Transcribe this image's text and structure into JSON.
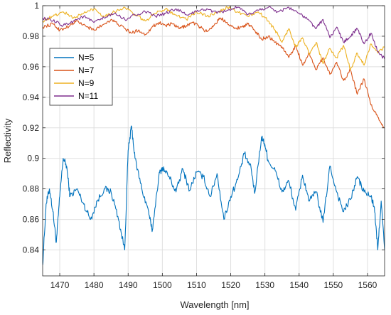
{
  "chart_data": {
    "type": "line",
    "xlabel": "Wavelength [nm]",
    "ylabel": "Reflectivity",
    "xlim": [
      1465,
      1565
    ],
    "ylim": [
      0.823,
      1.0
    ],
    "xticks": [
      1470,
      1480,
      1490,
      1500,
      1510,
      1520,
      1530,
      1540,
      1550,
      1560
    ],
    "yticks": [
      0.84,
      0.86,
      0.88,
      0.9,
      0.92,
      0.94,
      0.96,
      0.98,
      1
    ],
    "xtick_labels": [
      "1470",
      "1480",
      "1490",
      "1500",
      "1510",
      "1520",
      "1530",
      "1540",
      "1550",
      "1560"
    ],
    "ytick_labels": [
      "0.84",
      "0.86",
      "0.88",
      "0.9",
      "0.92",
      "0.94",
      "0.96",
      "0.98",
      "1"
    ],
    "grid": true,
    "legend_position": "top-left",
    "series": [
      {
        "name": "N=5",
        "color": "#0072BD",
        "x": [
          1465,
          1466,
          1467,
          1468,
          1469,
          1470,
          1471,
          1472,
          1473,
          1475,
          1477,
          1479,
          1481,
          1483,
          1485,
          1487,
          1489,
          1490,
          1491,
          1492,
          1494,
          1496,
          1497,
          1499,
          1500,
          1502,
          1504,
          1506,
          1508,
          1510,
          1512,
          1514,
          1516,
          1518,
          1520,
          1522,
          1524,
          1526,
          1527,
          1529,
          1530,
          1531,
          1533,
          1535,
          1537,
          1539,
          1541,
          1543,
          1545,
          1547,
          1549,
          1551,
          1553,
          1555,
          1557,
          1559,
          1561,
          1562,
          1563,
          1564,
          1565
        ],
        "y": [
          0.83,
          0.87,
          0.88,
          0.865,
          0.845,
          0.875,
          0.9,
          0.895,
          0.875,
          0.88,
          0.87,
          0.86,
          0.872,
          0.88,
          0.878,
          0.862,
          0.84,
          0.905,
          0.921,
          0.9,
          0.88,
          0.865,
          0.852,
          0.889,
          0.894,
          0.888,
          0.878,
          0.893,
          0.879,
          0.891,
          0.888,
          0.875,
          0.89,
          0.86,
          0.875,
          0.886,
          0.903,
          0.893,
          0.877,
          0.914,
          0.909,
          0.898,
          0.892,
          0.878,
          0.885,
          0.866,
          0.889,
          0.872,
          0.878,
          0.858,
          0.895,
          0.878,
          0.865,
          0.873,
          0.888,
          0.878,
          0.875,
          0.868,
          0.84,
          0.872,
          0.84
        ]
      },
      {
        "name": "N=7",
        "color": "#D95319",
        "x": [
          1465,
          1468,
          1470,
          1473,
          1475,
          1478,
          1480,
          1483,
          1485,
          1487,
          1489,
          1491,
          1493,
          1495,
          1497,
          1499,
          1501,
          1503,
          1505,
          1507,
          1509,
          1511,
          1513,
          1515,
          1517,
          1519,
          1521,
          1523,
          1525,
          1527,
          1529,
          1531,
          1533,
          1535,
          1537,
          1539,
          1541,
          1543,
          1545,
          1547,
          1549,
          1551,
          1553,
          1555,
          1557,
          1559,
          1561,
          1563,
          1565
        ],
        "y": [
          0.986,
          0.988,
          0.984,
          0.987,
          0.99,
          0.986,
          0.984,
          0.988,
          0.991,
          0.988,
          0.985,
          0.982,
          0.984,
          0.981,
          0.986,
          0.989,
          0.987,
          0.988,
          0.985,
          0.987,
          0.989,
          0.986,
          0.983,
          0.987,
          0.992,
          0.989,
          0.985,
          0.986,
          0.988,
          0.984,
          0.978,
          0.98,
          0.976,
          0.973,
          0.966,
          0.974,
          0.961,
          0.969,
          0.958,
          0.966,
          0.955,
          0.963,
          0.951,
          0.958,
          0.942,
          0.952,
          0.935,
          0.927,
          0.92
        ]
      },
      {
        "name": "N=9",
        "color": "#EDB120",
        "x": [
          1465,
          1468,
          1471,
          1474,
          1477,
          1480,
          1483,
          1486,
          1489,
          1492,
          1495,
          1498,
          1501,
          1504,
          1507,
          1510,
          1513,
          1516,
          1519,
          1522,
          1525,
          1528,
          1531,
          1533,
          1535,
          1537,
          1539,
          1541,
          1543,
          1545,
          1547,
          1549,
          1551,
          1553,
          1555,
          1557,
          1559,
          1561,
          1563,
          1565
        ],
        "y": [
          0.99,
          0.993,
          0.996,
          0.992,
          0.995,
          0.998,
          0.993,
          0.996,
          0.999,
          0.994,
          0.99,
          0.995,
          0.998,
          0.994,
          0.991,
          0.996,
          0.993,
          0.995,
          0.999,
          0.996,
          0.993,
          0.996,
          0.99,
          0.984,
          0.976,
          0.985,
          0.973,
          0.979,
          0.968,
          0.976,
          0.962,
          0.972,
          0.966,
          0.974,
          0.958,
          0.969,
          0.961,
          0.975,
          0.969,
          0.973
        ]
      },
      {
        "name": "N=11",
        "color": "#7E2F8E",
        "x": [
          1465,
          1468,
          1471,
          1474,
          1477,
          1480,
          1483,
          1486,
          1489,
          1492,
          1495,
          1498,
          1501,
          1504,
          1507,
          1510,
          1513,
          1516,
          1519,
          1522,
          1525,
          1528,
          1531,
          1534,
          1537,
          1540,
          1543,
          1545,
          1547,
          1549,
          1551,
          1553,
          1555,
          1557,
          1559,
          1561,
          1563,
          1565
        ],
        "y": [
          0.992,
          0.99,
          0.987,
          0.99,
          0.993,
          0.989,
          0.992,
          0.995,
          0.991,
          0.994,
          0.996,
          0.993,
          0.995,
          0.998,
          0.994,
          0.996,
          0.998,
          0.995,
          0.997,
          0.999,
          0.994,
          0.997,
          0.999,
          0.996,
          0.999,
          0.995,
          0.99,
          0.985,
          0.991,
          0.979,
          0.986,
          0.976,
          0.98,
          0.985,
          0.975,
          0.982,
          0.97,
          0.965
        ]
      }
    ]
  }
}
